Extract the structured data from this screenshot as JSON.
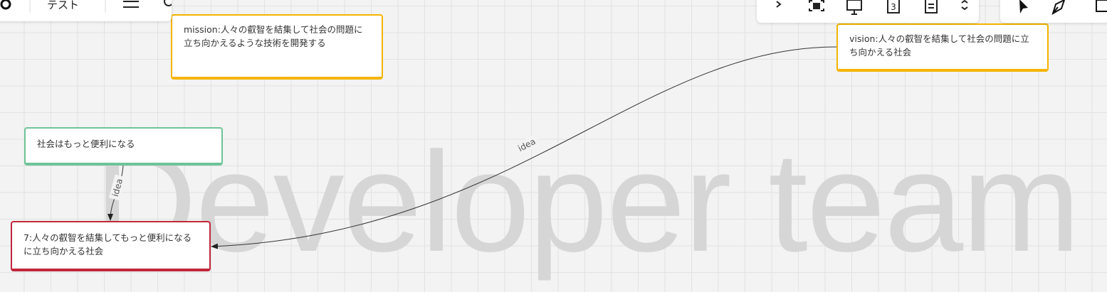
{
  "toolbar": {
    "board_name": "テスト"
  },
  "cards": [
    {
      "text": "mission:人々の叡智を結集して社会の問題に立ち向かえるような技術を開発する"
    },
    {
      "text": "vision:人々の叡智を結集して社会の問題に立ち向かえる社会"
    },
    {
      "text": "社会はもっと便利になる"
    },
    {
      "text": "7:人々の叡智を結集してもっと便利になるに立ち向かえる社会"
    }
  ],
  "edges": [
    {
      "label": "idea"
    },
    {
      "label": "idea"
    }
  ],
  "watermark": "Developer team"
}
